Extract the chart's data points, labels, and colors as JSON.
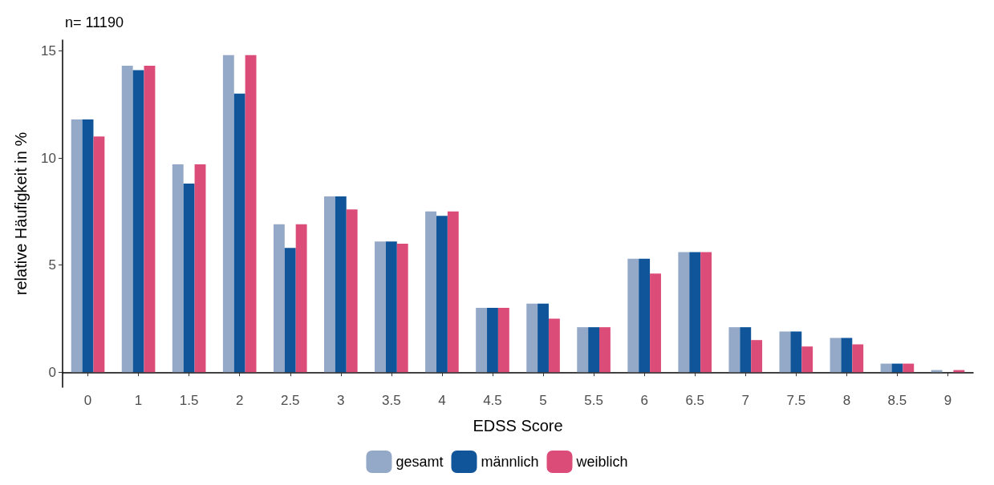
{
  "chart_data": {
    "type": "bar",
    "title": "n= 11190",
    "xlabel": "EDSS Score",
    "ylabel": "relative Häufigkeit in %",
    "categories": [
      "0",
      "1",
      "1.5",
      "2",
      "2.5",
      "3",
      "3.5",
      "4",
      "4.5",
      "5",
      "5.5",
      "6",
      "6.5",
      "7",
      "7.5",
      "8",
      "8.5",
      "9"
    ],
    "series": [
      {
        "name": "gesamt",
        "color": "#94a9c8",
        "values": [
          11.8,
          14.3,
          9.7,
          14.8,
          6.9,
          8.2,
          6.1,
          7.5,
          3.0,
          3.2,
          2.1,
          5.3,
          5.6,
          2.1,
          1.9,
          1.6,
          0.4,
          0.1
        ]
      },
      {
        "name": "männlich",
        "color": "#10559a",
        "values": [
          11.8,
          14.1,
          8.8,
          13.0,
          5.8,
          8.2,
          6.1,
          7.3,
          3.0,
          3.2,
          2.1,
          5.3,
          5.6,
          2.1,
          1.9,
          1.6,
          0.4,
          0.0
        ]
      },
      {
        "name": "weiblich",
        "color": "#dc4c78",
        "values": [
          11.0,
          14.3,
          9.7,
          14.8,
          6.9,
          7.6,
          6.0,
          7.5,
          3.0,
          2.5,
          2.1,
          4.6,
          5.6,
          1.5,
          1.2,
          1.3,
          0.4,
          0.1
        ]
      }
    ],
    "ylim": [
      -0.7,
      15.5
    ],
    "yticks": [
      0,
      5,
      10,
      15
    ],
    "grid": false,
    "legend": "bottom"
  }
}
